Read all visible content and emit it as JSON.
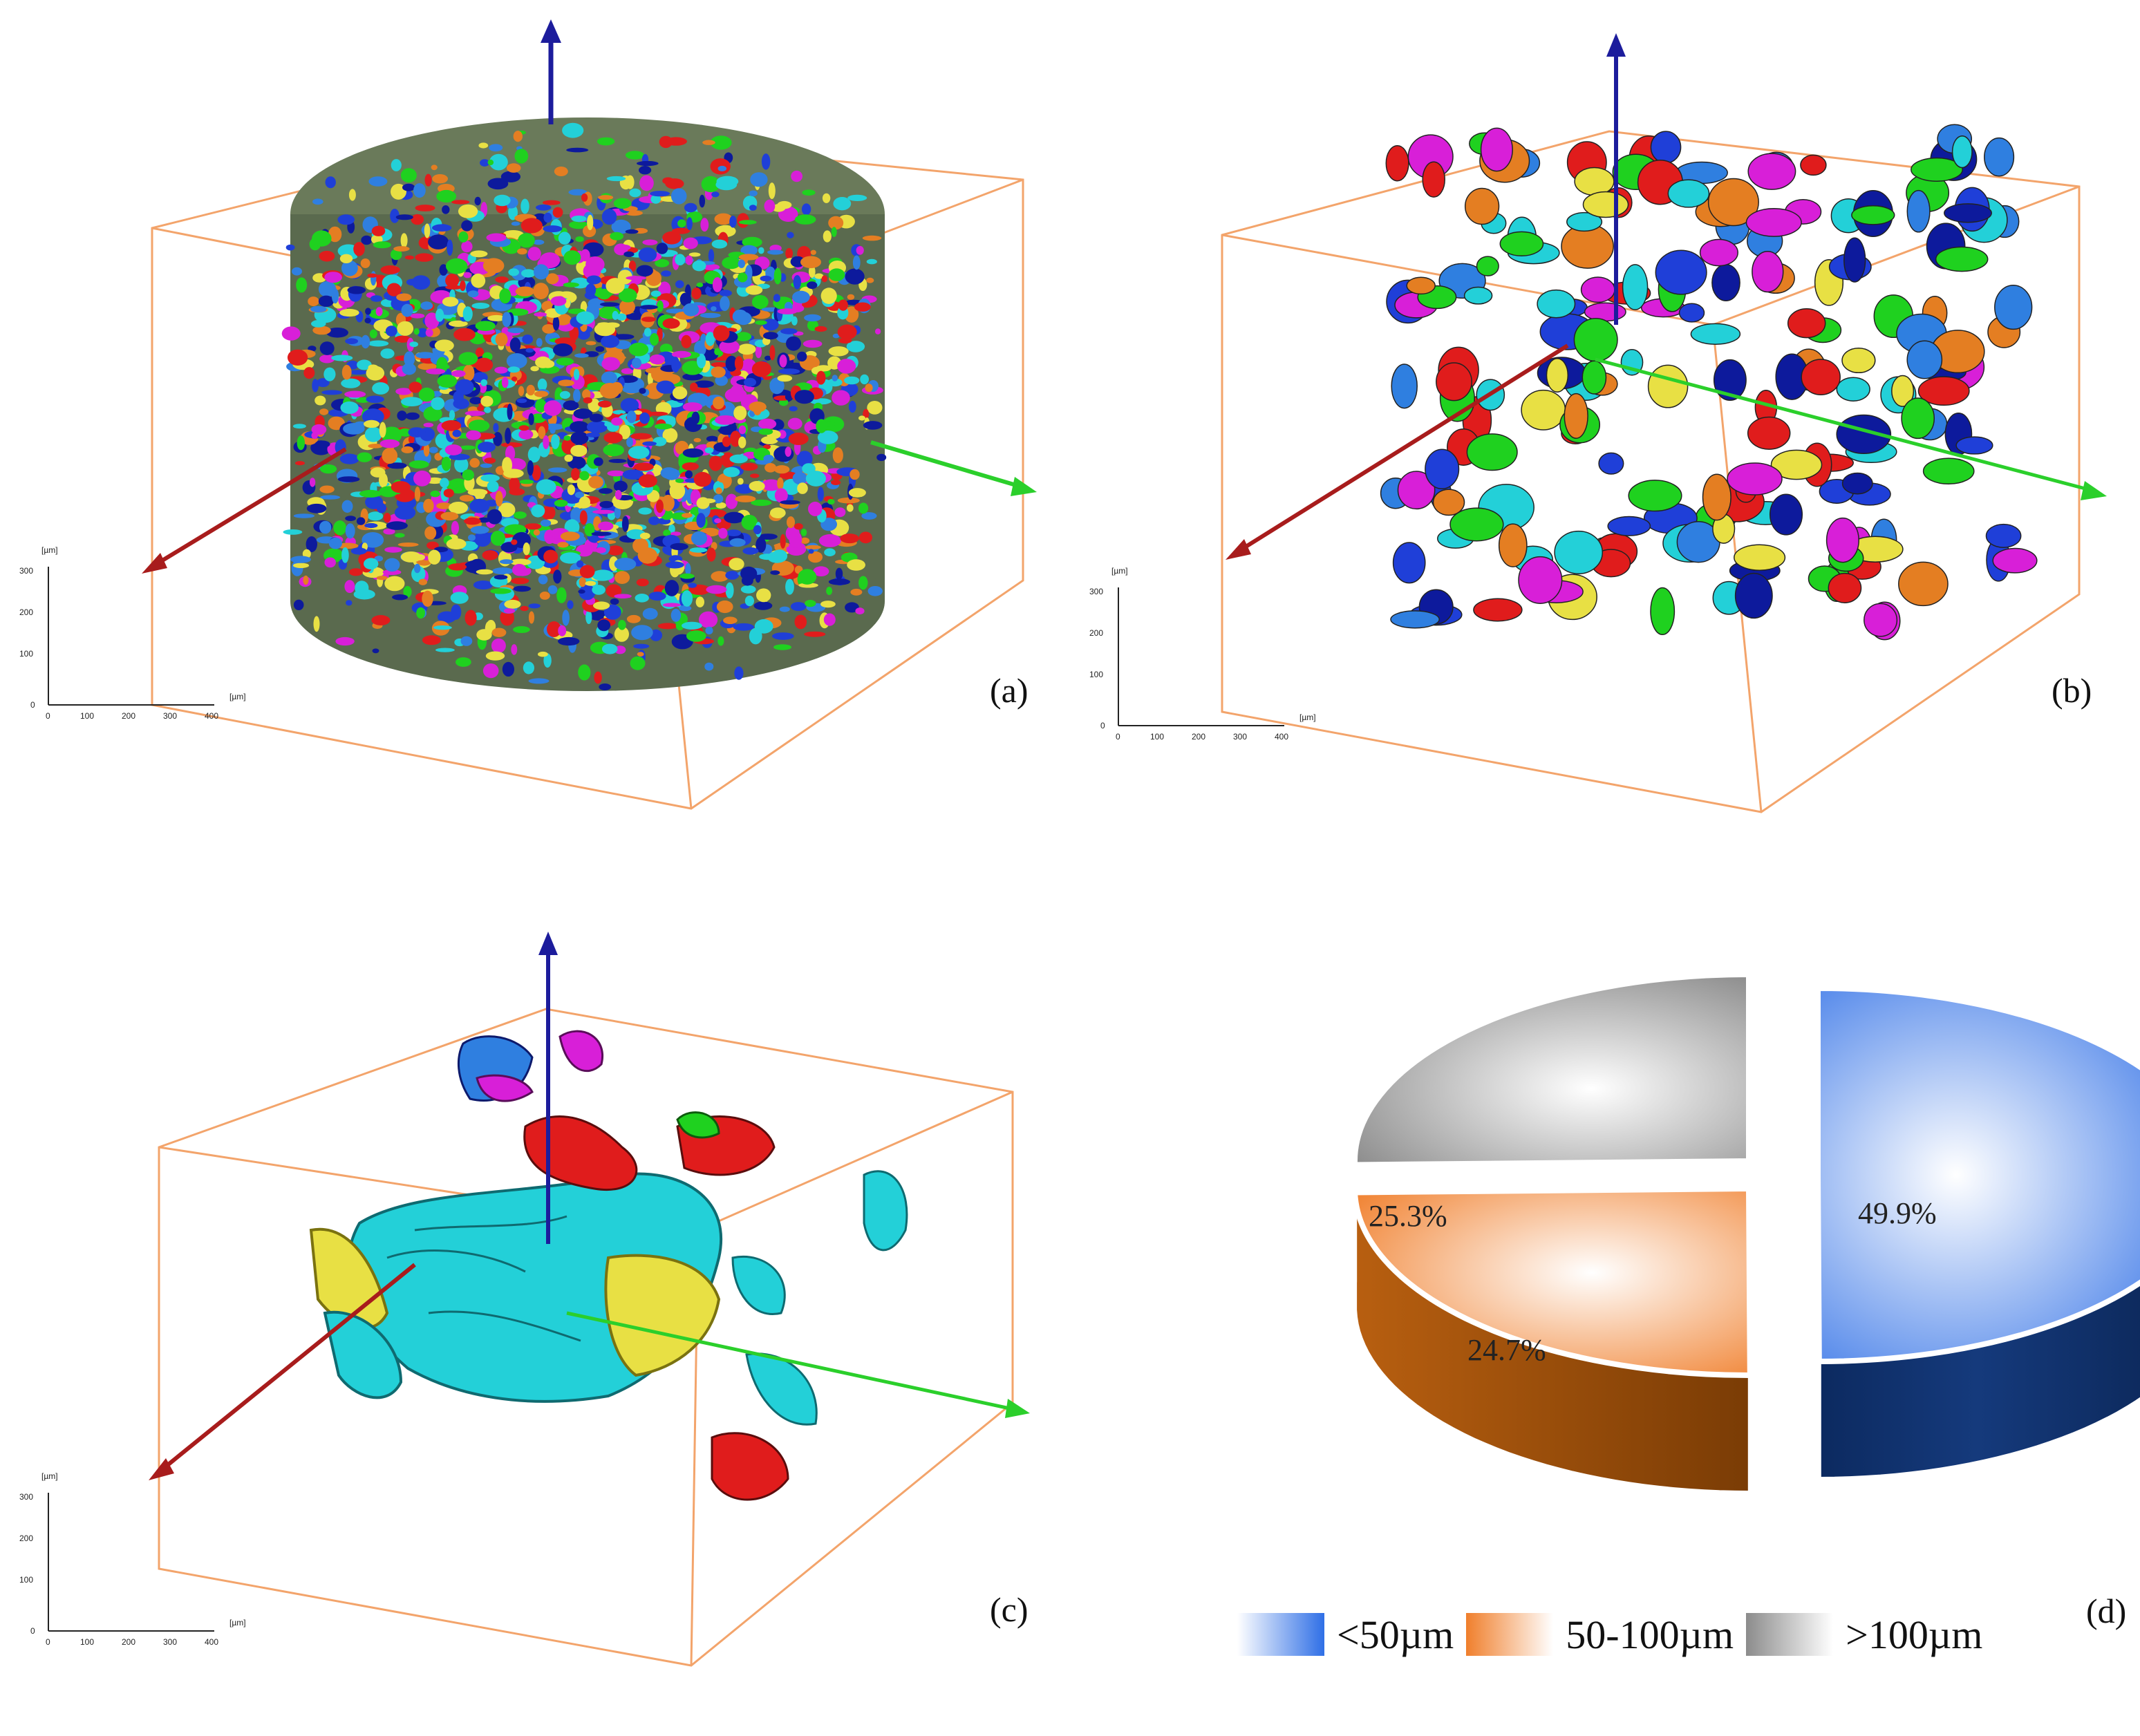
{
  "panels": {
    "a": {
      "letter": "(a)"
    },
    "b": {
      "letter": "(b)"
    },
    "c": {
      "letter": "(c)"
    },
    "d": {
      "letter": "(d)"
    }
  },
  "scale_bar": {
    "unit": "[µm]",
    "y_ticks": [
      "300",
      "200",
      "100",
      "0"
    ],
    "x_ticks": [
      "0",
      "100",
      "200",
      "300",
      "400"
    ]
  },
  "colors": {
    "box": "#f3a46b",
    "x_axis": "#a81c1c",
    "y_axis": "#2bcf2b",
    "z_axis": "#1c1c9c",
    "particles": [
      "#1f3fd8",
      "#23d0d8",
      "#e8e044",
      "#e01c1c",
      "#e47e22",
      "#1fd11f",
      "#d81fd8",
      "#2f7fe0",
      "#0d1a9c"
    ]
  },
  "chart_data": {
    "type": "pie",
    "categories": [
      "<50µm",
      "50-100µm",
      ">100µm"
    ],
    "values": [
      49.9,
      24.7,
      25.3
    ],
    "data_labels": [
      "49.9%",
      "24.7%",
      "25.3%"
    ],
    "colors": [
      "#2f6fe6",
      "#f07f2c",
      "#8c8c8c"
    ],
    "legend_position": "bottom"
  }
}
